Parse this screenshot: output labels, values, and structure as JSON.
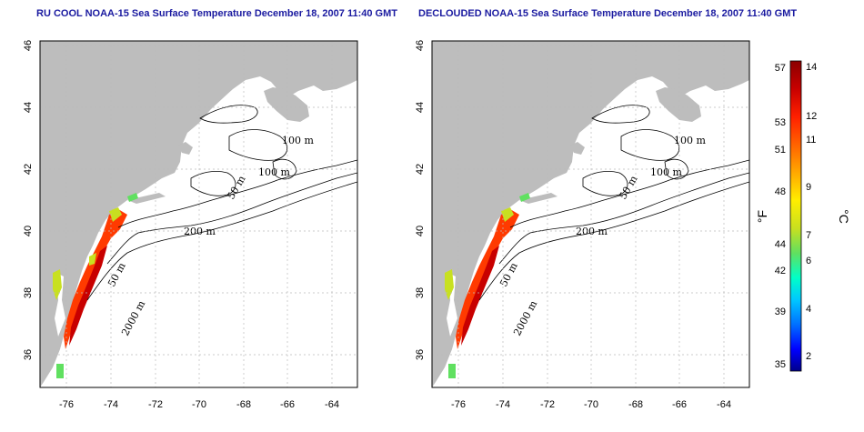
{
  "panels": [
    {
      "title": "RU COOL NOAA-15 Sea Surface Temperature December 18, 2007 11:40 GMT",
      "contour_labels": [
        "100 m",
        "100 m",
        "50 m",
        "200 m",
        "50 m",
        "2000 m"
      ]
    },
    {
      "title": "DECLOUDED NOAA-15 Sea Surface Temperature December 18, 2007 11:40 GMT",
      "contour_labels": [
        "100 m",
        "100 m",
        "50 m",
        "200 m",
        "50 m",
        "2000 m"
      ]
    }
  ],
  "axes": {
    "x_ticks": [
      "-76",
      "-74",
      "-72",
      "-70",
      "-68",
      "-66",
      "-64"
    ],
    "y_ticks": [
      "36",
      "38",
      "40",
      "42",
      "44",
      "46"
    ]
  },
  "colorbar": {
    "f_unit": "°F",
    "c_unit": "°C",
    "f_ticks": [
      "57",
      "53",
      "51",
      "48",
      "44",
      "42",
      "39",
      "35"
    ],
    "c_ticks": [
      "14",
      "12",
      "11",
      "9",
      "7",
      "6",
      "4",
      "2"
    ],
    "colors": [
      "#00008b",
      "#0000ff",
      "#0070ff",
      "#00c8ff",
      "#00ffc8",
      "#60e060",
      "#c8e020",
      "#ffee00",
      "#ffb000",
      "#ff6a00",
      "#ff2000",
      "#c80000",
      "#8b0000"
    ]
  },
  "colors": {
    "land": "#bdbdbd",
    "title": "#1a1aa0",
    "grid": "#bbbbbb"
  }
}
